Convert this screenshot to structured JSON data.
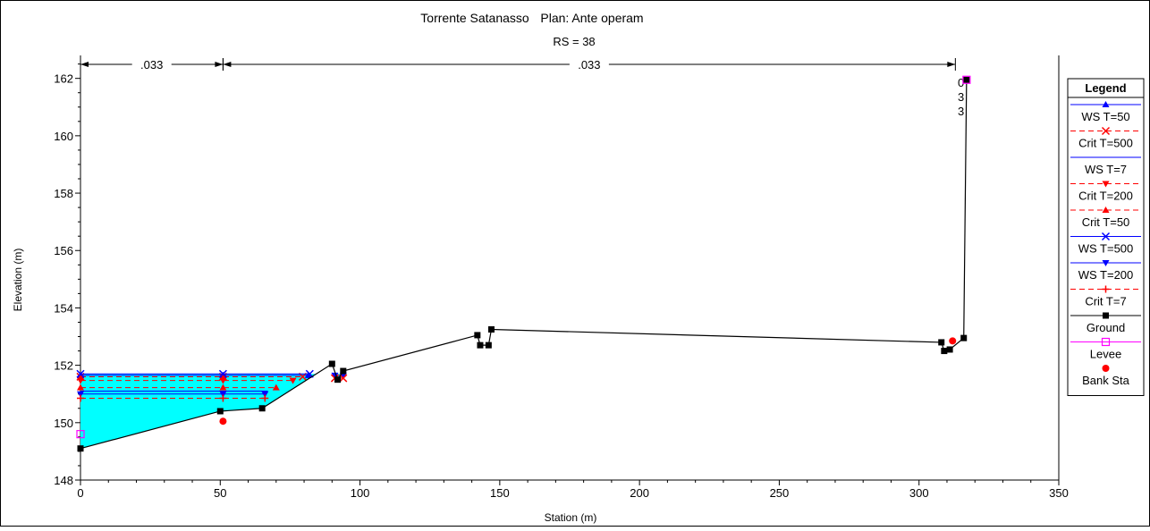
{
  "chart_data": {
    "type": "line",
    "title": "Torrente Satanasso",
    "plan_label": "Plan: Ante operam",
    "subtitle": "RS = 38",
    "xlabel": "Station (m)",
    "ylabel": "Elevation (m)",
    "xlim": [
      0,
      350
    ],
    "ylim": [
      148,
      162.8
    ],
    "x_ticks": [
      0,
      50,
      100,
      150,
      200,
      250,
      300,
      350
    ],
    "y_ticks": [
      148,
      150,
      152,
      154,
      156,
      158,
      160,
      162
    ],
    "grid": false,
    "legend_position": "right",
    "legend_title": "Legend",
    "colors": {
      "water_fill": "#00ffff",
      "ws": "#0000ff",
      "crit": "#ff0000",
      "ground": "#000000",
      "levee": "#ff00ff",
      "bank": "#ff0000"
    },
    "mannings": [
      {
        "label": ".033",
        "from": 0,
        "to": 51
      },
      {
        "label": ".033",
        "from": 51,
        "to": 313
      },
      {
        "label": "0\n3\n3",
        "from": 313,
        "to": 317
      }
    ],
    "series": [
      {
        "name": "WS T=50",
        "kind": "ws",
        "marker": "tri-up",
        "y": 151.65,
        "x": [
          0,
          51,
          81.5
        ]
      },
      {
        "name": "Crit T=500",
        "kind": "crit",
        "marker": "x",
        "y": 151.6,
        "x": [
          0,
          51,
          79.5
        ]
      },
      {
        "name": "WS T=7",
        "kind": "ws",
        "marker": "none",
        "y": 151.1,
        "x": [
          0,
          51,
          67
        ]
      },
      {
        "name": "Crit T=200",
        "kind": "crit",
        "marker": "tri-down",
        "y": 151.47,
        "x": [
          0,
          51,
          76
        ]
      },
      {
        "name": "Crit T=50",
        "kind": "crit",
        "marker": "tri-up",
        "y": 151.22,
        "x": [
          0,
          51,
          70
        ]
      },
      {
        "name": "WS T=500",
        "kind": "ws",
        "marker": "x",
        "y": 151.7,
        "x": [
          0,
          51,
          82
        ]
      },
      {
        "name": "WS T=200",
        "kind": "ws",
        "marker": "tri-down",
        "y": 151.0,
        "x": [
          0,
          51,
          66
        ]
      },
      {
        "name": "Crit T=7",
        "kind": "crit",
        "marker": "plus",
        "y": 150.85,
        "x": [
          0,
          51,
          66
        ]
      }
    ],
    "pocket_ws": [
      {
        "x1": 91,
        "x2": 94,
        "y": 151.65,
        "kind": "ws"
      },
      {
        "x1": 91,
        "x2": 94,
        "y": 151.55,
        "kind": "crit"
      }
    ],
    "ground": {
      "name": "Ground",
      "x": [
        0,
        50,
        65,
        90,
        92,
        94,
        142,
        143,
        146,
        147,
        308,
        309,
        311,
        316,
        317
      ],
      "y": [
        149.1,
        150.4,
        150.5,
        152.05,
        151.5,
        151.8,
        153.05,
        152.7,
        152.7,
        153.25,
        152.8,
        152.5,
        152.55,
        152.95,
        161.95
      ]
    },
    "levee": {
      "name": "Levee",
      "points": [
        {
          "x": 0,
          "y": 149.6
        },
        {
          "x": 317,
          "y": 161.95
        }
      ]
    },
    "bank_sta": {
      "name": "Bank Sta",
      "points": [
        {
          "x": 51,
          "y": 150.05
        },
        {
          "x": 312,
          "y": 152.85
        }
      ]
    }
  }
}
